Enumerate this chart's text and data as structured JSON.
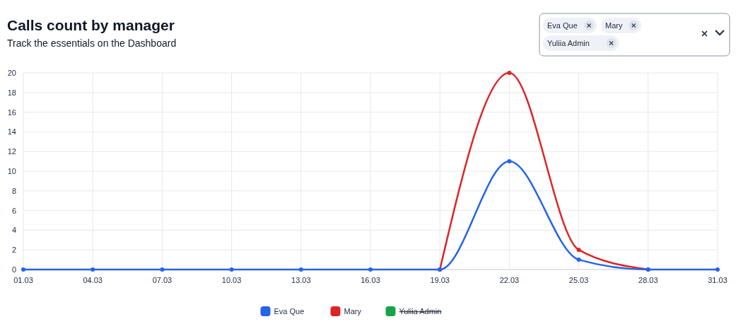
{
  "chart_data": {
    "type": "line",
    "title": "Calls count by manager",
    "subtitle": "Track the essentials on the Dashboard",
    "categories": [
      "01.03",
      "04.03",
      "07.03",
      "10.03",
      "13.03",
      "16.03",
      "19.03",
      "22.03",
      "25.03",
      "28.03",
      "31.03"
    ],
    "series": [
      {
        "name": "Eva Que",
        "color": "#2563eb",
        "values": [
          0,
          0,
          0,
          0,
          0,
          0,
          0,
          11,
          1,
          0,
          0
        ]
      },
      {
        "name": "Mary",
        "color": "#dc2626",
        "values": [
          null,
          null,
          null,
          null,
          null,
          null,
          0,
          20,
          2,
          0,
          null
        ]
      },
      {
        "name": "Yuliia Admin",
        "color": "#16a34a",
        "values": [
          null,
          null,
          null,
          null,
          null,
          null,
          null,
          null,
          null,
          null,
          null
        ]
      }
    ],
    "ylim": [
      0,
      20
    ],
    "yticks": [
      0,
      2,
      4,
      6,
      8,
      10,
      12,
      14,
      16,
      18,
      20
    ],
    "grid": true,
    "legend": "bottom",
    "marker": "circle",
    "line_style": "solid",
    "annotations": [
      "Eva Que",
      "Mary",
      "Yuliia Admin"
    ]
  }
}
